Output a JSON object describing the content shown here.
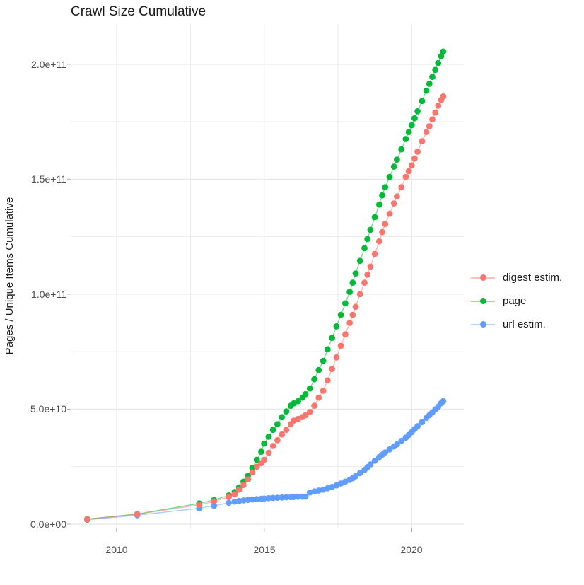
{
  "chart_data": {
    "type": "scatter",
    "title": "Crawl Size Cumulative",
    "xlabel": "",
    "ylabel": "Pages / Unique Items Cumulative",
    "legend_position": "right",
    "grid": true,
    "background": "#ffffff",
    "gridline_color": "#e7e7e7",
    "xlim": [
      2008.5,
      2021.75
    ],
    "ylim": [
      0,
      210000000000.0
    ],
    "x_ticks": [
      {
        "value": 2010,
        "label": "2010"
      },
      {
        "value": 2015,
        "label": "2015"
      },
      {
        "value": 2020,
        "label": "2020"
      }
    ],
    "x_minor_ticks": [
      2012.5,
      2017.5
    ],
    "y_ticks": [
      {
        "value": 0,
        "label": "0.0e+00"
      },
      {
        "value": 50000000000.0,
        "label": "5.0e+10"
      },
      {
        "value": 100000000000.0,
        "label": "1.0e+11"
      },
      {
        "value": 150000000000.0,
        "label": "1.5e+11"
      },
      {
        "value": 200000000000.0,
        "label": "2.0e+11"
      }
    ],
    "y_minor_ticks": [
      25000000000.0,
      75000000000.0,
      125000000000.0,
      175000000000.0
    ],
    "values_unit": "billions of pages / items (1e9)",
    "x_years": [
      2009.0,
      2010.7,
      2012.8,
      2013.3,
      2013.8,
      2014.0,
      2014.15,
      2014.3,
      2014.45,
      2014.6,
      2014.75,
      2014.9,
      2015.0,
      2015.15,
      2015.3,
      2015.45,
      2015.6,
      2015.75,
      2015.9,
      2016.0,
      2016.15,
      2016.3,
      2016.4,
      2016.55,
      2016.7,
      2016.85,
      2017.0,
      2017.15,
      2017.3,
      2017.45,
      2017.6,
      2017.75,
      2017.9,
      2018.0,
      2018.1,
      2018.25,
      2018.4,
      2018.5,
      2018.6,
      2018.75,
      2018.9,
      2019.0,
      2019.1,
      2019.25,
      2019.4,
      2019.5,
      2019.65,
      2019.8,
      2019.9,
      2020.0,
      2020.1,
      2020.2,
      2020.35,
      2020.5,
      2020.6,
      2020.7,
      2020.8,
      2020.9,
      2021.0,
      2021.07
    ],
    "series": [
      {
        "name": "digest estim.",
        "color": "#F8766D",
        "values_billions": [
          2.1,
          4.3,
          8.4,
          9.9,
          11.8,
          13,
          15,
          17,
          19.5,
          22.5,
          25,
          26.5,
          28,
          31,
          34,
          36.5,
          39,
          41,
          43.5,
          45,
          45.8,
          46.6,
          47.4,
          48.8,
          51.5,
          55,
          58,
          62.5,
          67.5,
          72.5,
          77.5,
          82.5,
          87.5,
          91,
          94.5,
          100,
          105,
          108.5,
          112,
          117.5,
          123,
          127,
          130.5,
          135,
          139.5,
          142.5,
          146.5,
          151,
          153.5,
          156,
          159,
          162,
          166.5,
          170.5,
          173,
          176,
          179,
          182,
          184.5,
          186
        ]
      },
      {
        "name": "page",
        "color": "#00BA38",
        "values_billions": [
          2.2,
          4.4,
          9.0,
          10.5,
          12.5,
          14,
          16,
          18.5,
          21,
          24.5,
          28,
          31.5,
          35,
          38,
          41,
          43.5,
          46.5,
          49,
          51.5,
          52.5,
          53.5,
          55,
          56.5,
          59,
          63,
          67,
          71,
          76,
          81,
          86,
          91,
          96,
          101,
          105,
          109,
          114.5,
          120,
          124,
          128,
          133.5,
          139,
          143,
          146.5,
          151,
          155.5,
          158.5,
          163,
          167.5,
          170.5,
          173.5,
          176.5,
          179.5,
          184,
          188.5,
          191.5,
          194.5,
          197.5,
          200.5,
          203.5,
          205.5
        ]
      },
      {
        "name": "url estim.",
        "color": "#619CFF",
        "values_billions": [
          1.9,
          3.9,
          6.9,
          8.0,
          9.3,
          9.8,
          10.1,
          10.35,
          10.55,
          10.75,
          10.9,
          11.05,
          11.15,
          11.3,
          11.4,
          11.5,
          11.6,
          11.7,
          11.75,
          11.8,
          11.9,
          11.95,
          12.0,
          13.8,
          14.2,
          14.6,
          15.0,
          15.6,
          16.2,
          16.9,
          17.7,
          18.5,
          19.3,
          20.0,
          20.9,
          22.2,
          23.6,
          24.8,
          26.0,
          27.6,
          29.2,
          30.2,
          31.2,
          32.5,
          33.8,
          34.7,
          36.2,
          37.6,
          38.8,
          40.0,
          41.3,
          42.6,
          44.4,
          46.2,
          47.4,
          48.6,
          49.9,
          51.1,
          52.6,
          53.5
        ]
      }
    ]
  }
}
